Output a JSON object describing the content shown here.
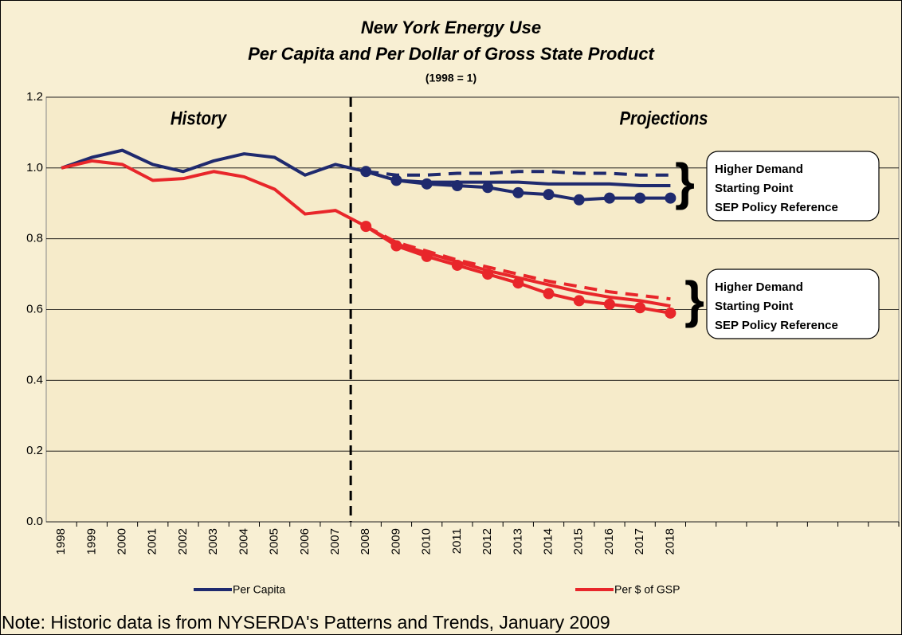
{
  "chart_data": {
    "type": "line",
    "title": "New York Energy Use",
    "subtitle": "Per Capita and Per Dollar of Gross State Product",
    "note_index": "(1998 = 1)",
    "annotations": [
      "History",
      "Projections"
    ],
    "scenarios": [
      "Higher Demand",
      "Starting Point",
      "SEP Policy Reference"
    ],
    "footnote": "Note: Historic data is from NYSERDA's Patterns and Trends, January 2009",
    "categories": [
      "1998",
      "1999",
      "2000",
      "2001",
      "2002",
      "2003",
      "2004",
      "2005",
      "2006",
      "2007",
      "2008",
      "2009",
      "2010",
      "2011",
      "2012",
      "2013",
      "2014",
      "2015",
      "2016",
      "2017",
      "2018",
      null,
      null,
      null,
      null,
      null,
      null,
      null
    ],
    "ylim": [
      0,
      1.2
    ],
    "yticks": [
      {
        "value": 0,
        "label": "0.0"
      },
      0.2,
      0.4,
      0.6,
      0.8,
      {
        "value": 1,
        "label": "1.0"
      },
      1.2
    ],
    "grid": true,
    "series": [
      {
        "name": "Per Capita",
        "color": "#1f2a6e",
        "values": [
          1.0,
          1.03,
          1.05,
          1.01,
          0.99,
          1.02,
          1.04,
          1.03,
          0.98,
          1.01,
          0.99,
          null,
          null,
          null,
          null,
          null,
          null,
          null,
          null,
          null,
          null,
          null,
          null,
          null,
          null,
          null,
          null,
          null
        ],
        "projections": [
          {
            "style": "dashed",
            "values": [
              null,
              null,
              null,
              null,
              null,
              null,
              null,
              null,
              null,
              null,
              0.99,
              0.98,
              0.98,
              0.985,
              0.985,
              0.99,
              0.99,
              0.985,
              0.985,
              0.98,
              0.98,
              null,
              null,
              null,
              null,
              null,
              null,
              null
            ]
          },
          {
            "style": "solid",
            "values": [
              null,
              null,
              null,
              null,
              null,
              null,
              null,
              null,
              null,
              null,
              0.99,
              0.965,
              0.96,
              0.96,
              0.96,
              0.96,
              0.955,
              0.955,
              0.955,
              0.95,
              0.95,
              null,
              null,
              null,
              null,
              null,
              null,
              null
            ]
          },
          {
            "style": "markers",
            "values": [
              null,
              null,
              null,
              null,
              null,
              null,
              null,
              null,
              null,
              null,
              0.99,
              0.965,
              0.955,
              0.95,
              0.945,
              0.93,
              0.925,
              0.91,
              0.915,
              0.915,
              0.915,
              null,
              null,
              null,
              null,
              null,
              null,
              null
            ]
          }
        ]
      },
      {
        "name": "Per $ of GSP",
        "color": "#e8262a",
        "values": [
          1.0,
          1.02,
          1.01,
          0.965,
          0.97,
          0.99,
          0.975,
          0.94,
          0.87,
          0.88,
          0.835,
          null,
          null,
          null,
          null,
          null,
          null,
          null,
          null,
          null,
          null,
          null,
          null,
          null,
          null,
          null,
          null,
          null
        ],
        "projections": [
          {
            "style": "dashed",
            "values": [
              null,
              null,
              null,
              null,
              null,
              null,
              null,
              null,
              null,
              null,
              0.835,
              0.79,
              0.765,
              0.74,
              0.72,
              0.7,
              0.68,
              0.665,
              0.65,
              0.64,
              0.63,
              null,
              null,
              null,
              null,
              null,
              null,
              null
            ]
          },
          {
            "style": "solid",
            "values": [
              null,
              null,
              null,
              null,
              null,
              null,
              null,
              null,
              null,
              null,
              0.835,
              0.785,
              0.76,
              0.735,
              0.71,
              0.69,
              0.67,
              0.65,
              0.635,
              0.625,
              0.61,
              null,
              null,
              null,
              null,
              null,
              null,
              null
            ]
          },
          {
            "style": "markers",
            "values": [
              null,
              null,
              null,
              null,
              null,
              null,
              null,
              null,
              null,
              null,
              0.835,
              0.78,
              0.75,
              0.725,
              0.7,
              0.675,
              0.645,
              0.625,
              0.615,
              0.605,
              0.59,
              null,
              null,
              null,
              null,
              null,
              null,
              null
            ]
          }
        ]
      }
    ]
  }
}
